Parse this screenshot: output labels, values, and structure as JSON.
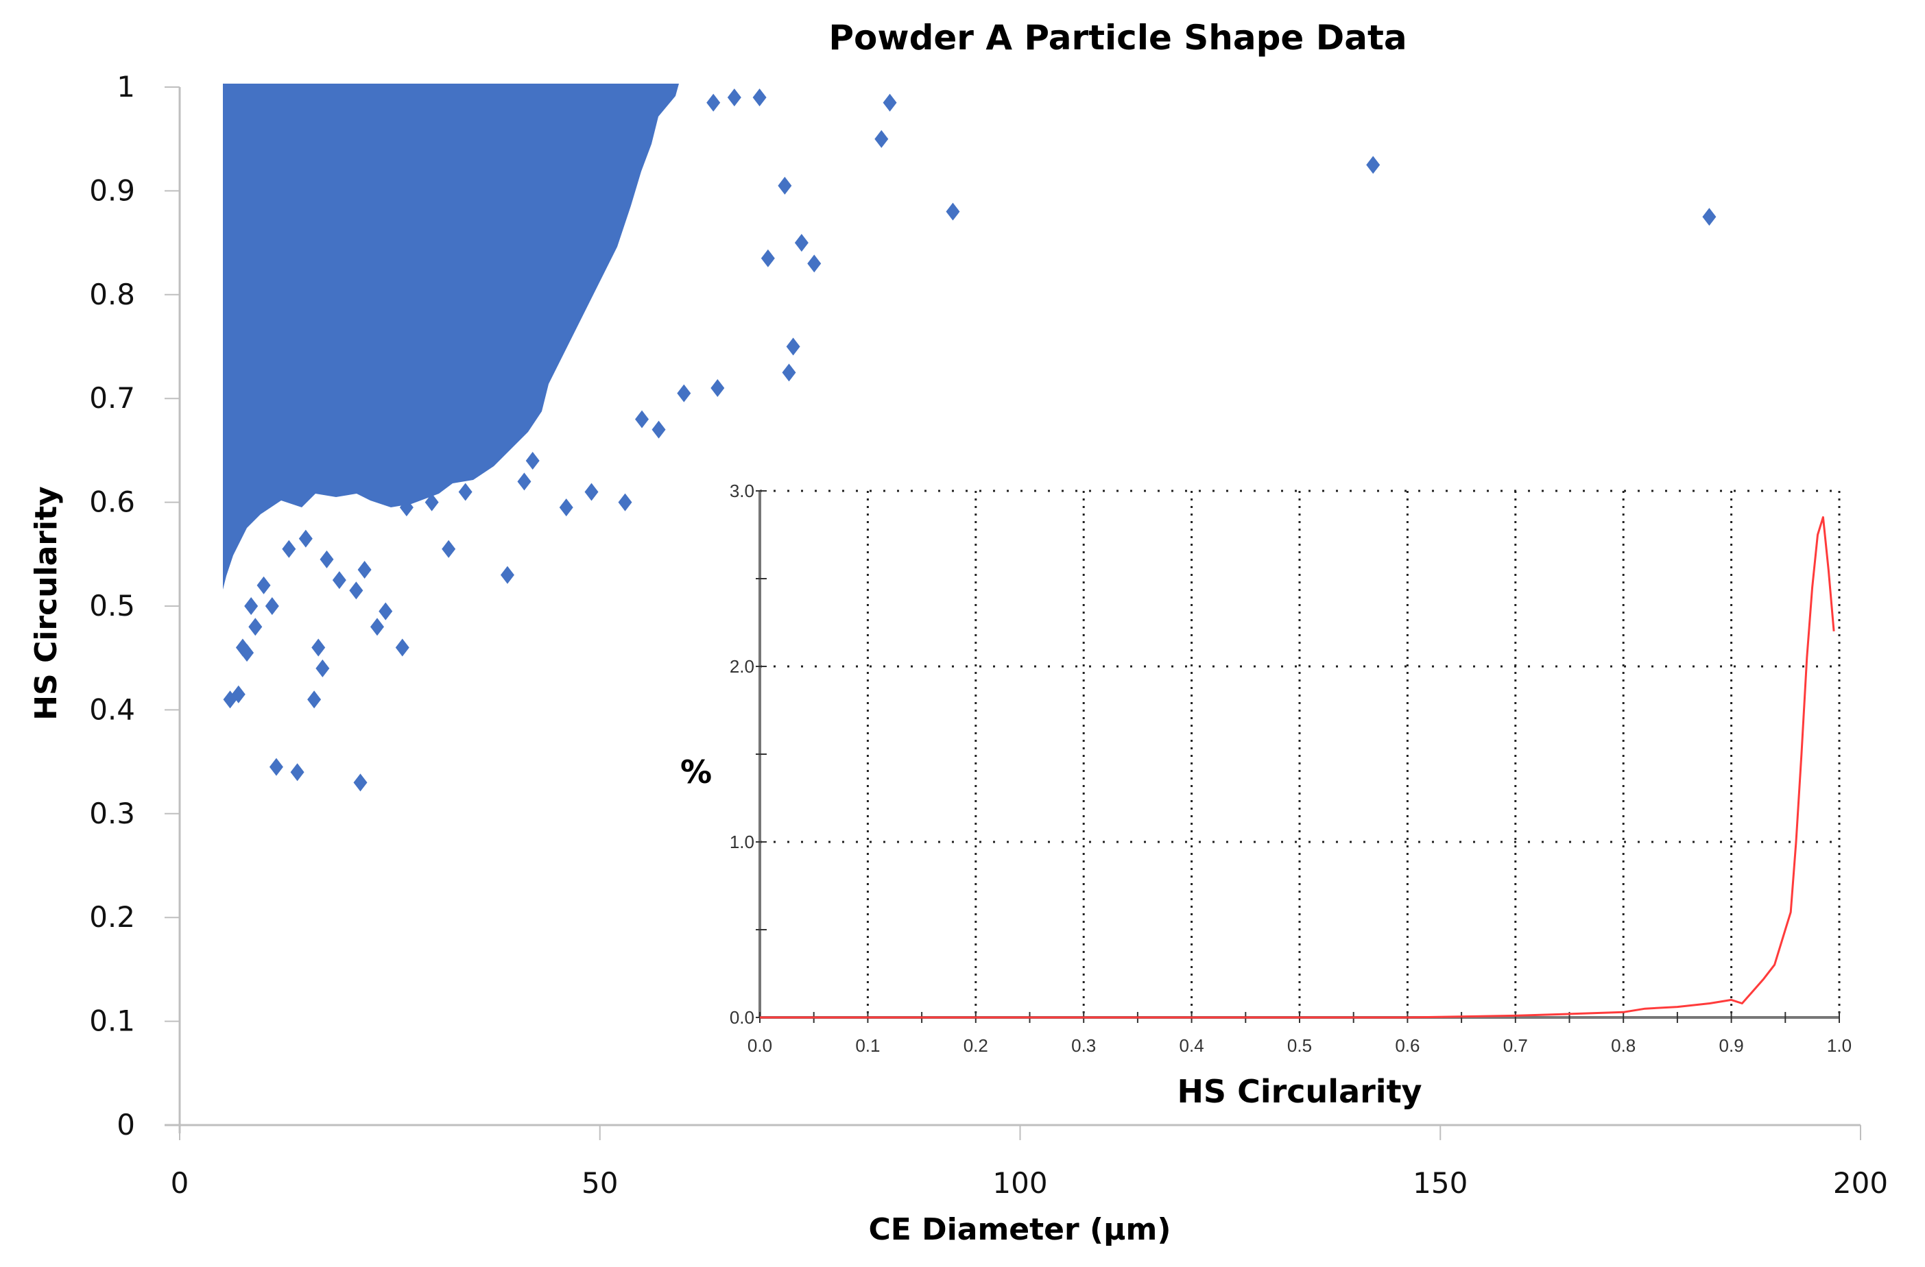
{
  "chart_data": [
    {
      "type": "scatter",
      "title": "Powder A Particle Shape Data",
      "xlabel": "CE Diameter (µm)",
      "ylabel": "HS Circularity",
      "xlim": [
        0,
        200
      ],
      "ylim": [
        0,
        1
      ],
      "xticks": [
        0,
        50,
        100,
        150,
        200
      ],
      "xtick_labels": [
        "0",
        "50",
        "100",
        "150",
        "200"
      ],
      "yticks": [
        0,
        0.1,
        0.2,
        0.3,
        0.4,
        0.5,
        0.6,
        0.7,
        0.8,
        0.9,
        1
      ],
      "ytick_labels": [
        "0",
        "0.1",
        "0.2",
        "0.3",
        "0.4",
        "0.5",
        "0.6",
        "0.7",
        "0.8",
        "0.9",
        "1"
      ],
      "grid": false,
      "marker": "diamond",
      "marker_color": "#4472C4",
      "dense_region_description": "Very dense cloud of points from CE Diameter ~5 to ~58 µm, circularity ~0.6 to 1.0; density thins toward larger diameters and lower circularity",
      "series": [
        {
          "name": "Particles",
          "points": [
            [
              6,
              0.41
            ],
            [
              7,
              0.415
            ],
            [
              7.5,
              0.46
            ],
            [
              8,
              0.455
            ],
            [
              8.5,
              0.5
            ],
            [
              9,
              0.48
            ],
            [
              10,
              0.52
            ],
            [
              11,
              0.5
            ],
            [
              11.5,
              0.345
            ],
            [
              13,
              0.555
            ],
            [
              14,
              0.34
            ],
            [
              15,
              0.565
            ],
            [
              16,
              0.41
            ],
            [
              16.5,
              0.46
            ],
            [
              17,
              0.44
            ],
            [
              17.5,
              0.545
            ],
            [
              19,
              0.525
            ],
            [
              21,
              0.515
            ],
            [
              21.5,
              0.33
            ],
            [
              22,
              0.535
            ],
            [
              23.5,
              0.48
            ],
            [
              24.5,
              0.495
            ],
            [
              26.5,
              0.46
            ],
            [
              27,
              0.595
            ],
            [
              30,
              0.6
            ],
            [
              32,
              0.555
            ],
            [
              34,
              0.61
            ],
            [
              39,
              0.53
            ],
            [
              41,
              0.62
            ],
            [
              42,
              0.64
            ],
            [
              46,
              0.595
            ],
            [
              49,
              0.61
            ],
            [
              53,
              0.6
            ],
            [
              55,
              0.68
            ],
            [
              57,
              0.67
            ],
            [
              60,
              0.705
            ],
            [
              64,
              0.71
            ],
            [
              72.5,
              0.725
            ],
            [
              73,
              0.75
            ],
            [
              75.5,
              0.83
            ],
            [
              74,
              0.85
            ],
            [
              70,
              0.835
            ],
            [
              72,
              0.905
            ],
            [
              69,
              0.99
            ],
            [
              66,
              0.99
            ],
            [
              63.5,
              0.985
            ],
            [
              84.5,
              0.985
            ],
            [
              83.5,
              0.95
            ],
            [
              92,
              0.88
            ],
            [
              142,
              0.925
            ],
            [
              182,
              0.875
            ]
          ]
        }
      ]
    },
    {
      "type": "line",
      "title": "",
      "xlabel": "HS Circularity",
      "ylabel": "%",
      "xlim": [
        0,
        1
      ],
      "ylim": [
        0,
        3
      ],
      "xticks": [
        0,
        0.1,
        0.2,
        0.3,
        0.4,
        0.5,
        0.6,
        0.7,
        0.8,
        0.9,
        1.0
      ],
      "xtick_labels": [
        "0.0",
        "0.1",
        "0.2",
        "0.3",
        "0.4",
        "0.5",
        "0.6",
        "0.7",
        "0.8",
        "0.9",
        "1.0"
      ],
      "yticks": [
        0,
        1,
        2,
        3
      ],
      "ytick_labels": [
        "0.0",
        "1.0",
        "2.0",
        "3.0"
      ],
      "grid": "dotted",
      "line_color": "#FF3B3B",
      "series": [
        {
          "name": "HS Circularity distribution",
          "x": [
            0.0,
            0.1,
            0.2,
            0.3,
            0.4,
            0.5,
            0.6,
            0.7,
            0.75,
            0.8,
            0.82,
            0.85,
            0.88,
            0.9,
            0.91,
            0.92,
            0.93,
            0.94,
            0.95,
            0.955,
            0.96,
            0.965,
            0.97,
            0.975,
            0.98,
            0.985,
            0.99,
            0.995
          ],
          "y": [
            0.0,
            0.0,
            0.0,
            0.0,
            0.0,
            0.0,
            0.0,
            0.01,
            0.02,
            0.03,
            0.05,
            0.06,
            0.08,
            0.1,
            0.08,
            0.15,
            0.22,
            0.3,
            0.5,
            0.6,
            1.0,
            1.5,
            2.05,
            2.45,
            2.75,
            2.85,
            2.55,
            2.2
          ]
        }
      ]
    }
  ],
  "labels": {
    "title": "Powder A Particle Shape Data",
    "x_axis_title": "CE Diameter (µm)",
    "y_axis_title": "HS Circularity",
    "inset_x_axis_title": "HS Circularity",
    "inset_y_axis_title": "%"
  }
}
